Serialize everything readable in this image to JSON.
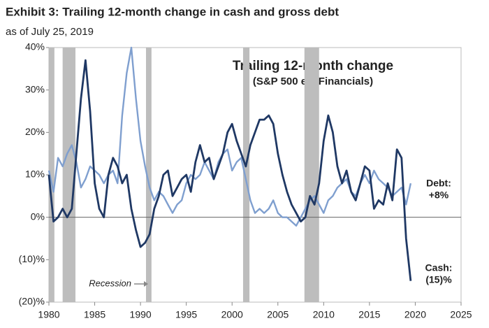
{
  "chart_data": {
    "type": "line",
    "title": "Exhibit 3: Trailing 12-month change in cash and gross debt",
    "subtitle": "as of July 25, 2019",
    "inner_title": "Trailing 12-month change",
    "inner_subtitle": "(S&P 500 ex. Financials)",
    "xlim": [
      1980,
      2025
    ],
    "xticks": [
      1980,
      1985,
      1990,
      1995,
      2000,
      2005,
      2010,
      2015,
      2020,
      2025
    ],
    "ylim": [
      -20,
      40
    ],
    "yticks": [
      {
        "value": -20,
        "label": "(20)%"
      },
      {
        "value": -10,
        "label": "(10)%"
      },
      {
        "value": 0,
        "label": "0%"
      },
      {
        "value": 10,
        "label": "10%"
      },
      {
        "value": 20,
        "label": "20%"
      },
      {
        "value": 30,
        "label": "30%"
      },
      {
        "value": 40,
        "label": "40%"
      }
    ],
    "recession_label": "Recession",
    "recession_color": "#bdbdbd",
    "recessions": [
      [
        1980.0,
        1980.6
      ],
      [
        1981.5,
        1982.9
      ],
      [
        1990.6,
        1991.2
      ],
      [
        2001.2,
        2001.9
      ],
      [
        2007.9,
        2009.5
      ]
    ],
    "x": [
      1980,
      1980.5,
      1981,
      1981.5,
      1982,
      1982.5,
      1983,
      1983.5,
      1984,
      1984.5,
      1985,
      1985.5,
      1986,
      1986.5,
      1987,
      1987.5,
      1988,
      1988.5,
      1989,
      1989.5,
      1990,
      1990.5,
      1991,
      1991.5,
      1992,
      1992.5,
      1993,
      1993.5,
      1994,
      1994.5,
      1995,
      1995.5,
      1996,
      1996.5,
      1997,
      1997.5,
      1998,
      1998.5,
      1999,
      1999.5,
      2000,
      2000.5,
      2001,
      2001.5,
      2002,
      2002.5,
      2003,
      2003.5,
      2004,
      2004.5,
      2005,
      2005.5,
      2006,
      2006.5,
      2007,
      2007.5,
      2008,
      2008.5,
      2009,
      2009.5,
      2010,
      2010.5,
      2011,
      2011.5,
      2012,
      2012.5,
      2013,
      2013.5,
      2014,
      2014.5,
      2015,
      2015.5,
      2016,
      2016.5,
      2017,
      2017.5,
      2018,
      2018.5,
      2019,
      2019.5
    ],
    "series": [
      {
        "name": "Cash",
        "color": "#1f3864",
        "label_lines": [
          "Cash:",
          "(15)%"
        ],
        "values": [
          10,
          -1,
          0,
          2,
          0,
          2,
          15,
          28,
          37,
          25,
          8,
          2,
          0,
          10,
          14,
          12,
          8,
          10,
          2,
          -3,
          -7,
          -6,
          -4,
          2,
          5,
          10,
          11,
          5,
          7,
          9,
          10,
          6,
          13,
          17,
          13,
          14,
          9,
          12,
          15,
          20,
          22,
          18,
          15,
          12,
          17,
          20,
          23,
          23,
          24,
          22,
          15,
          10,
          6,
          3,
          1,
          -1,
          0,
          5,
          3,
          8,
          18,
          24,
          20,
          12,
          8,
          11,
          6,
          4,
          8,
          12,
          11,
          2,
          4,
          3,
          8,
          4,
          16,
          14,
          -5,
          -15
        ]
      },
      {
        "name": "Debt",
        "color": "#7f9fcf",
        "label_lines": [
          "Debt:",
          "+8%"
        ],
        "values": [
          11,
          6,
          14,
          12,
          15,
          17,
          13,
          7,
          9,
          12,
          11,
          10,
          8,
          10,
          11,
          8,
          24,
          34,
          40,
          28,
          18,
          12,
          7,
          4,
          6,
          5,
          3,
          1,
          3,
          4,
          8,
          10,
          9,
          10,
          13,
          11,
          9,
          13,
          15,
          16,
          11,
          13,
          14,
          9,
          4,
          1,
          2,
          1,
          2,
          4,
          1,
          0,
          0,
          -1,
          -2,
          0,
          2,
          4,
          5,
          3,
          1,
          4,
          5,
          7,
          8,
          9,
          6,
          5,
          8,
          10,
          8,
          11,
          9,
          8,
          7,
          5,
          6,
          7,
          3,
          8
        ]
      }
    ]
  }
}
